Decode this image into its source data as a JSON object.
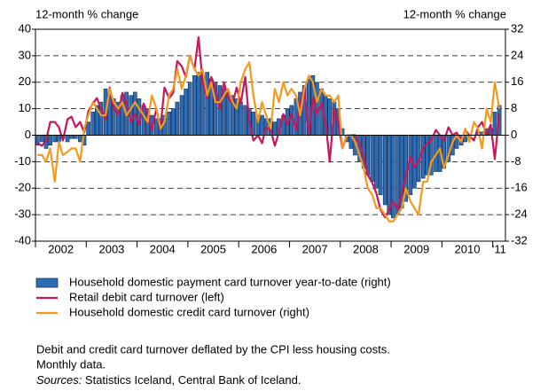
{
  "chart_data": {
    "type": "combo",
    "ylabel": "12-month % change",
    "y2label": "12-month % change",
    "ylim": [
      -40,
      40
    ],
    "yticks": [
      -40,
      -30,
      -20,
      -10,
      0,
      10,
      20,
      30,
      40
    ],
    "y2lim": [
      -32,
      32
    ],
    "y2ticks": [
      -32,
      -24,
      -16,
      -8,
      0,
      8,
      16,
      24,
      32
    ],
    "xlim": [
      2002,
      2011.25
    ],
    "xticks": [
      2002,
      2003,
      2004,
      2005,
      2006,
      2007,
      2008,
      2009,
      2010,
      2011
    ],
    "xtick_labels": [
      {
        "value": 2002.5,
        "label": "2002"
      },
      {
        "value": 2003.5,
        "label": "2003"
      },
      {
        "value": 2004.5,
        "label": "2004"
      },
      {
        "value": 2005.5,
        "label": "2005"
      },
      {
        "value": 2006.5,
        "label": "2006"
      },
      {
        "value": 2007.5,
        "label": "2007"
      },
      {
        "value": 2008.5,
        "label": "2008"
      },
      {
        "value": 2009.5,
        "label": "2009"
      },
      {
        "value": 2010.5,
        "label": "2010"
      },
      {
        "value": 2011.125,
        "label": "'11"
      }
    ],
    "grid": true,
    "x": [
      2002.04,
      2002.13,
      2002.21,
      2002.29,
      2002.38,
      2002.46,
      2002.54,
      2002.63,
      2002.71,
      2002.79,
      2002.88,
      2002.96,
      2003.04,
      2003.13,
      2003.21,
      2003.29,
      2003.38,
      2003.46,
      2003.54,
      2003.63,
      2003.71,
      2003.79,
      2003.88,
      2003.96,
      2004.04,
      2004.13,
      2004.21,
      2004.29,
      2004.38,
      2004.46,
      2004.54,
      2004.63,
      2004.71,
      2004.79,
      2004.88,
      2004.96,
      2005.04,
      2005.13,
      2005.21,
      2005.29,
      2005.38,
      2005.46,
      2005.54,
      2005.63,
      2005.71,
      2005.79,
      2005.88,
      2005.96,
      2006.04,
      2006.13,
      2006.21,
      2006.29,
      2006.38,
      2006.46,
      2006.54,
      2006.63,
      2006.71,
      2006.79,
      2006.88,
      2006.96,
      2007.04,
      2007.13,
      2007.21,
      2007.29,
      2007.38,
      2007.46,
      2007.54,
      2007.63,
      2007.71,
      2007.79,
      2007.88,
      2007.96,
      2008.04,
      2008.13,
      2008.21,
      2008.29,
      2008.38,
      2008.46,
      2008.54,
      2008.63,
      2008.71,
      2008.79,
      2008.88,
      2008.96,
      2009.04,
      2009.13,
      2009.21,
      2009.29,
      2009.38,
      2009.46,
      2009.54,
      2009.63,
      2009.71,
      2009.79,
      2009.88,
      2009.96,
      2010.04,
      2010.13,
      2010.21,
      2010.29,
      2010.38,
      2010.46,
      2010.54,
      2010.63,
      2010.71,
      2010.79,
      2010.88,
      2010.96,
      2011.04,
      2011.13
    ],
    "series": [
      {
        "name": "Household domestic payment card turnover year-to-date (right)",
        "type": "bar",
        "axis": "y2",
        "color": "#2e6db4",
        "values": [
          -3,
          -2,
          -4,
          -3,
          -2,
          -2,
          -1,
          -2,
          -1,
          -1,
          -2,
          -3,
          4,
          7,
          9,
          10,
          14,
          12,
          11,
          10,
          12,
          13,
          12,
          13,
          11,
          9,
          8,
          6,
          5,
          5,
          6,
          7,
          8,
          10,
          12,
          14,
          16,
          18,
          19,
          18,
          19,
          17,
          16,
          15,
          14,
          13,
          12,
          11,
          10,
          9,
          8,
          7,
          6,
          6,
          5,
          5,
          4,
          5,
          6,
          8,
          9,
          11,
          13,
          15,
          17,
          18,
          16,
          14,
          12,
          11,
          10,
          8,
          2,
          -2,
          -4,
          -6,
          -8,
          -10,
          -12,
          -14,
          -16,
          -18,
          -21,
          -24,
          -25,
          -24,
          -22,
          -20,
          -18,
          -16,
          -14,
          -13,
          -12,
          -12,
          -11,
          -11,
          -10,
          -8,
          -6,
          -4,
          -3,
          -2,
          -1,
          0,
          1,
          1,
          2,
          2,
          7,
          9
        ]
      },
      {
        "name": "Retail debit card turnover (left)",
        "type": "line",
        "axis": "y",
        "color": "#c4175c",
        "values": [
          -3,
          -4,
          -2,
          5,
          5,
          3,
          -2,
          6,
          7,
          3,
          5,
          1,
          9,
          12,
          14,
          10,
          6,
          18,
          10,
          8,
          16,
          12,
          5,
          8,
          4,
          12,
          8,
          2,
          10,
          3,
          18,
          14,
          16,
          28,
          26,
          22,
          30,
          25,
          37,
          20,
          14,
          22,
          18,
          10,
          20,
          14,
          12,
          18,
          12,
          22,
          5,
          -2,
          0,
          -3,
          3,
          2,
          -4,
          1,
          8,
          4,
          8,
          2,
          12,
          18,
          0,
          14,
          8,
          12,
          5,
          -10,
          10,
          5,
          -5,
          0,
          0,
          0,
          -3,
          -8,
          -15,
          -18,
          -22,
          -28,
          -31,
          -28,
          -25,
          -28,
          -22,
          -15,
          -8,
          -12,
          -10,
          -5,
          -3,
          -2,
          2,
          0,
          -2,
          3,
          0,
          1,
          -2,
          2,
          0,
          -2,
          3,
          5,
          0,
          4,
          -9,
          8
        ]
      },
      {
        "name": "Household domestic credit card turnover (right)",
        "type": "line",
        "axis": "y2",
        "color": "#f39a1e",
        "values": [
          -6,
          -6,
          -8,
          -4,
          -14,
          -2,
          -6,
          -5,
          -4,
          -4,
          -8,
          2,
          6,
          10,
          8,
          6,
          6,
          14,
          10,
          8,
          10,
          6,
          8,
          10,
          8,
          6,
          4,
          12,
          8,
          2,
          4,
          12,
          14,
          20,
          14,
          18,
          24,
          20,
          18,
          20,
          12,
          16,
          10,
          10,
          12,
          14,
          10,
          8,
          16,
          20,
          22,
          12,
          4,
          10,
          6,
          2,
          14,
          10,
          16,
          12,
          14,
          12,
          6,
          14,
          18,
          16,
          10,
          14,
          12,
          12,
          10,
          12,
          -4,
          0,
          0,
          -2,
          -6,
          -10,
          -16,
          -18,
          -22,
          -22,
          -24,
          -26,
          -26,
          -24,
          -22,
          -16,
          -20,
          -22,
          -24,
          -14,
          -14,
          -8,
          -6,
          -4,
          -10,
          -6,
          -2,
          0,
          -2,
          2,
          -2,
          4,
          2,
          -4,
          8,
          4,
          16,
          8
        ]
      }
    ],
    "notes": [
      "Debit and credit card turnover deflated by the CPI less housing costs.",
      "Monthly data."
    ],
    "source": {
      "label": "Sources:",
      "text": " Statistics Iceland, Central Bank of Iceland."
    }
  }
}
